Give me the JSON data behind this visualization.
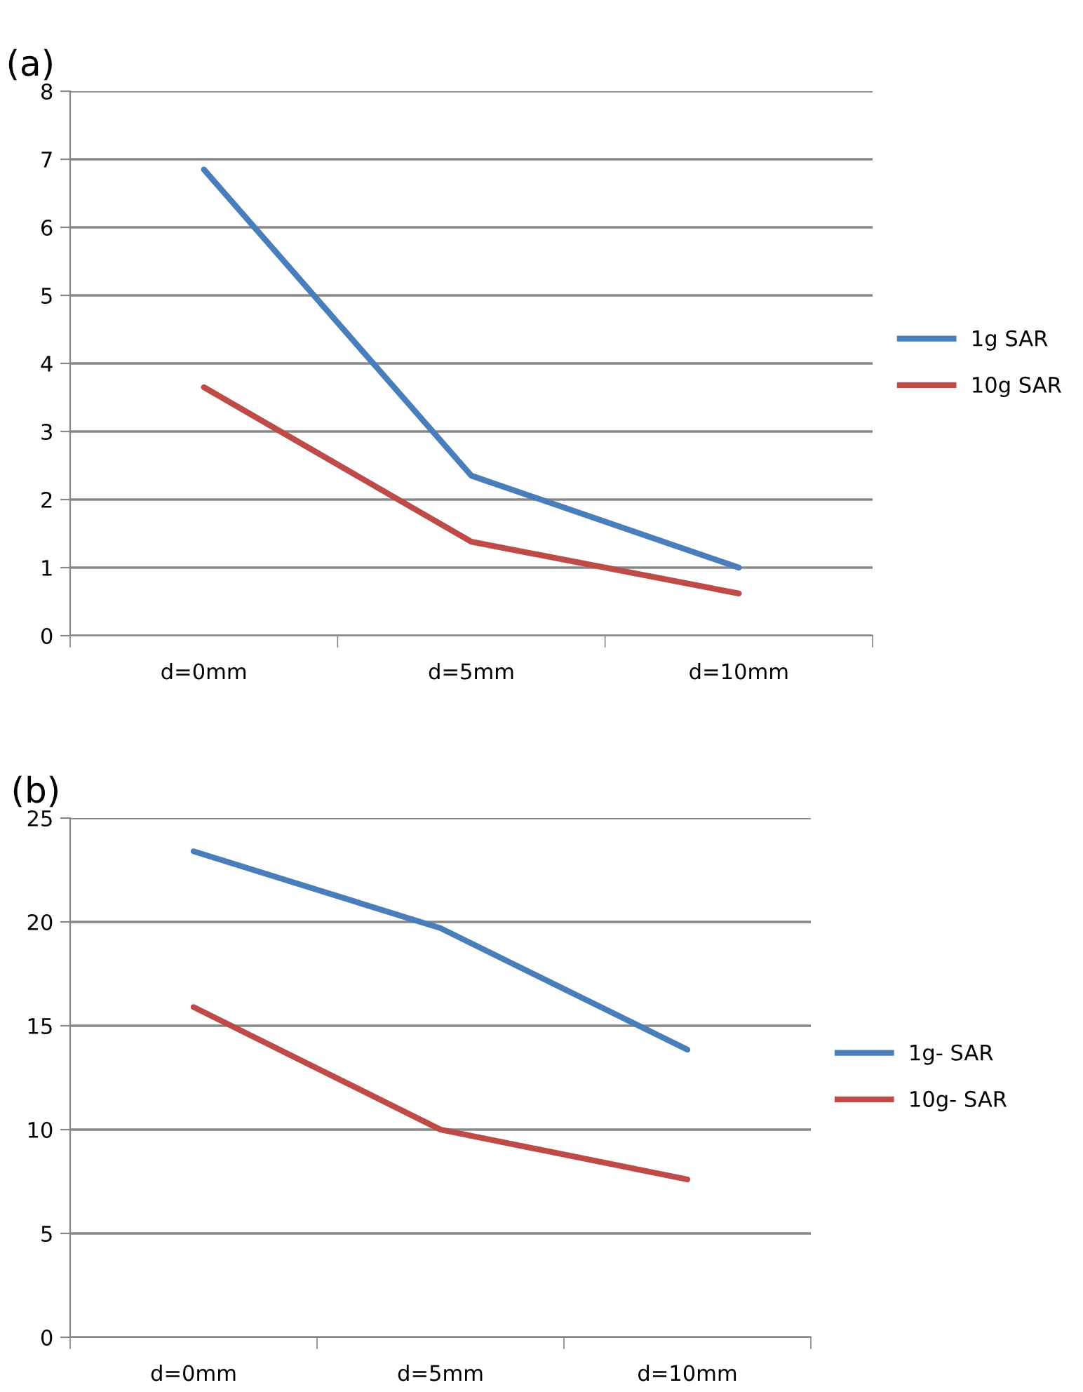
{
  "chart_data": [
    {
      "type": "line",
      "title": "(a)",
      "categories": [
        "d=0mm",
        "d=5mm",
        "d=10mm"
      ],
      "series": [
        {
          "name": "1g SAR",
          "color": "#4a7ebb",
          "values": [
            6.85,
            2.35,
            1.0
          ]
        },
        {
          "name": "10g SAR",
          "color": "#be4b48",
          "values": [
            3.65,
            1.38,
            0.62
          ]
        }
      ],
      "ylim": [
        0,
        8
      ],
      "yticks": [
        0,
        1,
        2,
        3,
        4,
        5,
        6,
        7,
        8
      ],
      "grid": "y",
      "legend": "right",
      "marker": "none"
    },
    {
      "type": "line",
      "title": "(b)",
      "categories": [
        "d=0mm",
        "d=5mm",
        "d=10mm"
      ],
      "series": [
        {
          "name": "1g- SAR",
          "color": "#4a7ebb",
          "values": [
            23.4,
            19.7,
            13.85
          ]
        },
        {
          "name": "10g- SAR",
          "color": "#be4b48",
          "values": [
            15.9,
            10.0,
            7.6
          ]
        }
      ],
      "ylim": [
        0,
        25
      ],
      "yticks": [
        0,
        5,
        10,
        15,
        20,
        25
      ],
      "grid": "y",
      "legend": "right",
      "marker": "none"
    }
  ]
}
